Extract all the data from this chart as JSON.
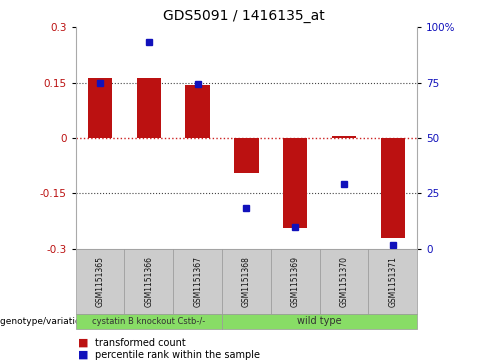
{
  "title": "GDS5091 / 1416135_at",
  "samples": [
    "GSM1151365",
    "GSM1151366",
    "GSM1151367",
    "GSM1151368",
    "GSM1151369",
    "GSM1151370",
    "GSM1151371"
  ],
  "bar_values": [
    0.163,
    0.163,
    0.143,
    -0.095,
    -0.245,
    0.005,
    -0.27
  ],
  "dot_values_left": [
    0.15,
    0.26,
    0.145,
    -0.19,
    -0.24,
    -0.125,
    -0.29
  ],
  "ylim": [
    -0.3,
    0.3
  ],
  "yticks_left": [
    -0.3,
    -0.15,
    0,
    0.15,
    0.3
  ],
  "yticks_right": [
    0,
    25,
    50,
    75,
    100
  ],
  "bar_color": "#bb1111",
  "dot_color": "#1111bb",
  "hline_color": "#cc2222",
  "dotted_color": "#444444",
  "group1_label": "cystatin B knockout Cstb-/-",
  "group2_label": "wild type",
  "group1_color": "#88dd66",
  "group2_color": "#88dd66",
  "legend_bar_label": "transformed count",
  "legend_dot_label": "percentile rank within the sample",
  "genotype_label": "genotype/variation"
}
